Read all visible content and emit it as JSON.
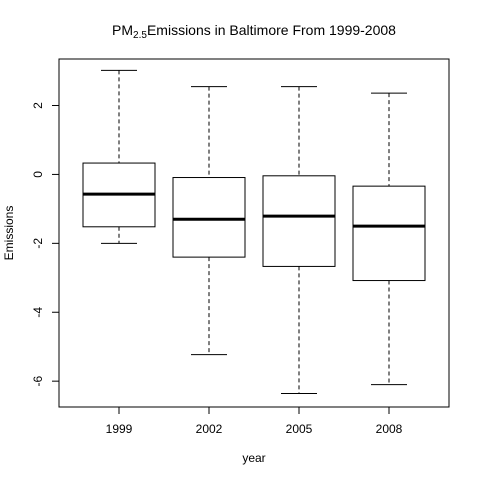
{
  "chart_data": {
    "type": "box",
    "title": {
      "prefix": "PM",
      "subscript": "2.5",
      "suffix": "Emissions in Baltimore From 1999-2008"
    },
    "xlabel": "year",
    "ylabel": "Emissions",
    "categories": [
      "1999",
      "2002",
      "2005",
      "2008"
    ],
    "ylim": [
      -6.75,
      3.35
    ],
    "yticks": [
      -6,
      -4,
      -2,
      0,
      2
    ],
    "grid": false,
    "boxes": [
      {
        "category": "1999",
        "whisker_low": -2.0,
        "q1": -1.52,
        "median": -0.57,
        "q3": 0.33,
        "whisker_high": 3.02
      },
      {
        "category": "2002",
        "whisker_low": -5.23,
        "q1": -2.4,
        "median": -1.3,
        "q3": -0.09,
        "whisker_high": 2.55
      },
      {
        "category": "2005",
        "whisker_low": -6.36,
        "q1": -2.67,
        "median": -1.21,
        "q3": -0.04,
        "whisker_high": 2.55
      },
      {
        "category": "2008",
        "whisker_low": -6.1,
        "q1": -3.08,
        "median": -1.5,
        "q3": -0.34,
        "whisker_high": 2.36
      }
    ]
  }
}
